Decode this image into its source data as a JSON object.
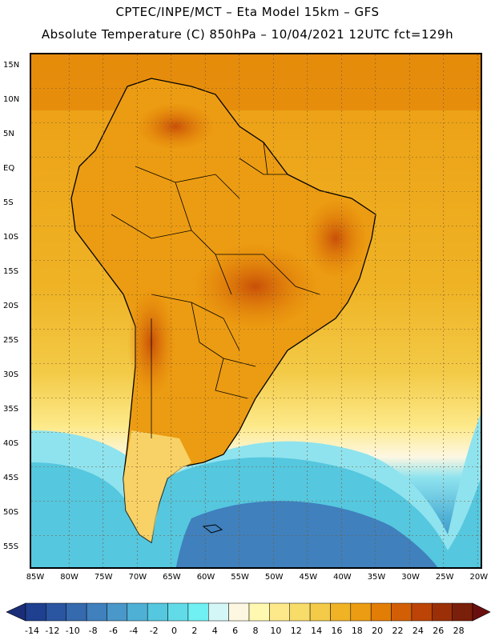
{
  "header": {
    "line1": "CPTEC/INPE/MCT –  Eta Model 15km – GFS",
    "line2": "Absolute Temperature (C) 850hPa – 10/04/2021 12UTC fct=129h"
  },
  "axes": {
    "lat_labels": [
      "15N",
      "10N",
      "5N",
      "EQ",
      "5S",
      "10S",
      "15S",
      "20S",
      "25S",
      "30S",
      "35S",
      "40S",
      "45S",
      "50S",
      "55S"
    ],
    "lon_labels": [
      "85W",
      "80W",
      "75W",
      "70W",
      "65W",
      "60W",
      "55W",
      "50W",
      "45W",
      "40W",
      "35W",
      "30W",
      "25W",
      "20W"
    ]
  },
  "colorbar": {
    "ticks": [
      "-14",
      "-12",
      "-10",
      "-8",
      "-6",
      "-4",
      "-2",
      "0",
      "2",
      "4",
      "6",
      "8",
      "10",
      "12",
      "14",
      "16",
      "18",
      "20",
      "22",
      "24",
      "26",
      "28"
    ],
    "colors": [
      "#1f3f8f",
      "#2a55a0",
      "#356aae",
      "#3f80bd",
      "#4a97c9",
      "#4fb0d6",
      "#55c7df",
      "#62dbe8",
      "#70f0f2",
      "#d4f6f6",
      "#fdf7e2",
      "#fff8b0",
      "#fde98a",
      "#f8dc6a",
      "#f3cb48",
      "#efb325",
      "#ec9c12",
      "#e27d05",
      "#d25f06",
      "#bb4406",
      "#9a2f08",
      "#7a1f0a"
    ],
    "under_color": "#1a2e78",
    "over_color": "#6a0f0f"
  },
  "map": {
    "ocean_warm": "#f0a81a",
    "ocean_mid": "#f5c832",
    "land_warm": "#e8860c",
    "land_hot": "#d66010",
    "cold_light": "#8fe3ee",
    "cold_mid": "#4fc0dc",
    "cold_deep": "#2e7fc0",
    "coast_color": "#000000"
  }
}
